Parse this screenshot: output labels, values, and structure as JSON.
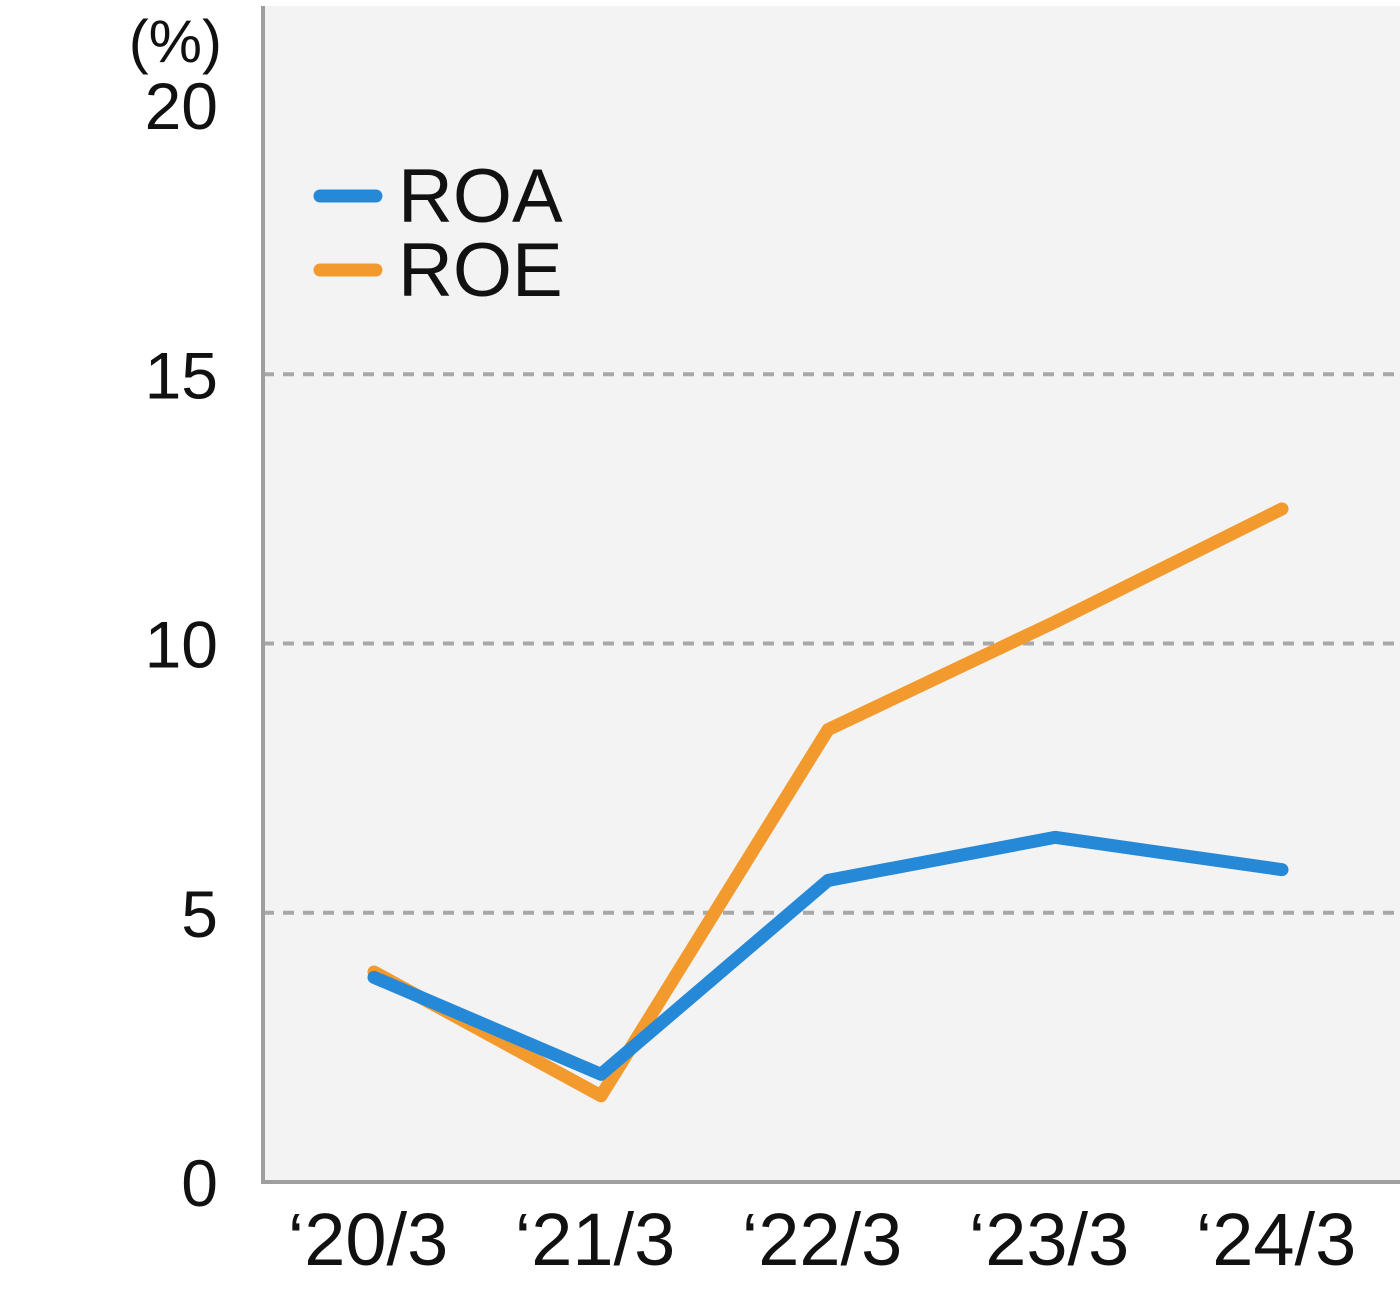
{
  "chart_data": {
    "type": "line",
    "unit_label": "(%)",
    "categories": [
      "‘20/3",
      "‘21/3",
      "‘22/3",
      "‘23/3",
      "‘24/3"
    ],
    "series": [
      {
        "name": "ROA",
        "color": "#2589d8",
        "values": [
          3.8,
          2.0,
          5.6,
          6.4,
          5.8
        ]
      },
      {
        "name": "ROE",
        "color": "#f39a2e",
        "values": [
          3.9,
          1.6,
          8.4,
          10.4,
          12.5
        ]
      }
    ],
    "ylim": [
      0,
      20
    ],
    "yticks": [
      0,
      5,
      10,
      15,
      20
    ],
    "ytick_labels": [
      "0",
      "5",
      "10",
      "15",
      "20"
    ],
    "gridlines": [
      5,
      10,
      15
    ],
    "grid": true,
    "legend_position": "top-left",
    "plot_background": "#f3f3f3",
    "axis_color": "#9e9e9e",
    "grid_color": "#a8a8a8"
  }
}
